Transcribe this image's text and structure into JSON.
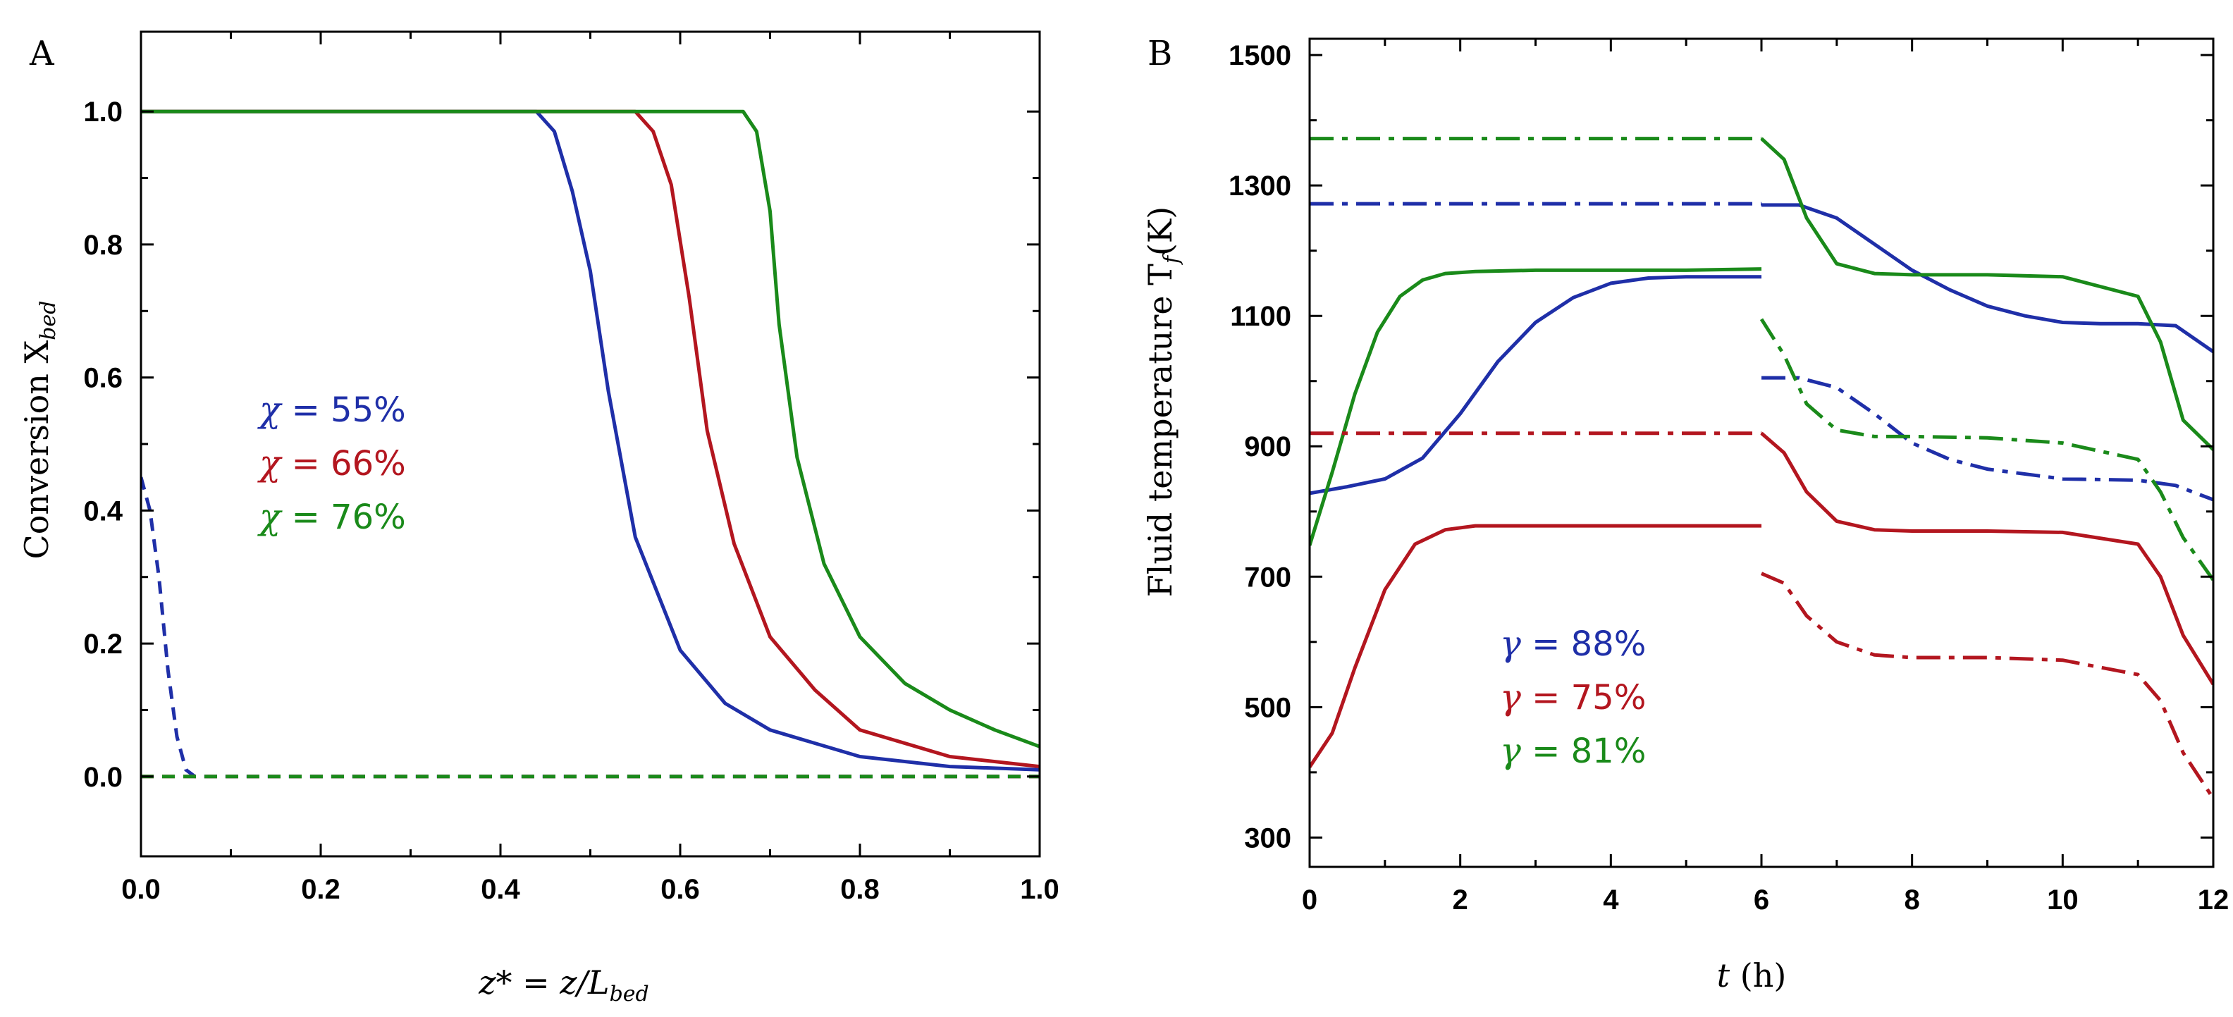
{
  "colors": {
    "blue": "#1f2fa8",
    "red": "#b3161f",
    "green": "#1a8a1a"
  },
  "chart_data": [
    {
      "panel": "A",
      "type": "line",
      "xlabel_main": "z* = z/L",
      "xlabel_sub": "bed",
      "ylabel_main": "Conversion X",
      "ylabel_sub": "bed",
      "xlim": [
        0.0,
        1.0
      ],
      "ylim": [
        -0.12,
        1.12
      ],
      "xticks": [
        "0.0",
        "0.2",
        "0.4",
        "0.6",
        "0.8",
        "1.0"
      ],
      "xtick_values": [
        0.0,
        0.2,
        0.4,
        0.6,
        0.8,
        1.0
      ],
      "yticks": [
        "0.0",
        "0.2",
        "0.4",
        "0.6",
        "0.8",
        "1.0"
      ],
      "ytick_values": [
        0.0,
        0.2,
        0.4,
        0.6,
        0.8,
        1.0
      ],
      "legend": [
        {
          "sym": "χ",
          "text": " = 55%",
          "color": "blue"
        },
        {
          "sym": "χ",
          "text": " = 66%",
          "color": "red"
        },
        {
          "sym": "χ",
          "text": " = 76%",
          "color": "green"
        }
      ],
      "series": [
        {
          "name": "χ = 55% (solid)",
          "color": "blue",
          "dash": "solid",
          "x": [
            0.0,
            0.44,
            0.46,
            0.48,
            0.5,
            0.52,
            0.55,
            0.6,
            0.65,
            0.7,
            0.8,
            0.9,
            1.0
          ],
          "y": [
            1.0,
            1.0,
            0.97,
            0.88,
            0.76,
            0.58,
            0.36,
            0.19,
            0.11,
            0.07,
            0.03,
            0.015,
            0.01
          ]
        },
        {
          "name": "χ = 66% (solid)",
          "color": "red",
          "dash": "solid",
          "x": [
            0.0,
            0.55,
            0.57,
            0.59,
            0.61,
            0.63,
            0.66,
            0.7,
            0.75,
            0.8,
            0.9,
            1.0
          ],
          "y": [
            1.0,
            1.0,
            0.97,
            0.89,
            0.72,
            0.52,
            0.35,
            0.21,
            0.13,
            0.07,
            0.03,
            0.015
          ]
        },
        {
          "name": "χ = 76% (solid)",
          "color": "green",
          "dash": "solid",
          "x": [
            0.0,
            0.67,
            0.685,
            0.7,
            0.71,
            0.73,
            0.76,
            0.8,
            0.85,
            0.9,
            0.95,
            1.0
          ],
          "y": [
            1.0,
            1.0,
            0.97,
            0.85,
            0.68,
            0.48,
            0.32,
            0.21,
            0.14,
            0.1,
            0.07,
            0.045
          ]
        },
        {
          "name": "χ = 55% (dashed)",
          "color": "blue",
          "dash": "dash",
          "x": [
            0.0,
            0.01,
            0.02,
            0.03,
            0.04,
            0.05,
            0.06,
            1.0
          ],
          "y": [
            0.45,
            0.4,
            0.3,
            0.16,
            0.06,
            0.01,
            0.0,
            0.0
          ]
        },
        {
          "name": "χ = 66% (dashed)",
          "color": "red",
          "dash": "dash",
          "x": [
            0.0,
            1.0
          ],
          "y": [
            0.0,
            0.0
          ]
        },
        {
          "name": "χ = 76% (dashed)",
          "color": "green",
          "dash": "dash",
          "x": [
            0.0,
            1.0
          ],
          "y": [
            0.0,
            0.0
          ]
        }
      ]
    },
    {
      "panel": "B",
      "type": "line",
      "xlabel_main": "t",
      "xlabel_unit": " (h)",
      "ylabel_main": "Fluid temperature T",
      "ylabel_sub": "f",
      "ylabel_unit": "(K)",
      "xlim": [
        0,
        12
      ],
      "ylim": [
        255,
        1525
      ],
      "xticks": [
        "0",
        "2",
        "4",
        "6",
        "8",
        "10",
        "12"
      ],
      "xtick_values": [
        0,
        2,
        4,
        6,
        8,
        10,
        12
      ],
      "yticks": [
        "300",
        "500",
        "700",
        "900",
        "1100",
        "1300",
        "1500"
      ],
      "ytick_values": [
        300,
        500,
        700,
        900,
        1100,
        1300,
        1500
      ],
      "legend": [
        {
          "sym": "γ",
          "text": " = 88%",
          "color": "blue"
        },
        {
          "sym": "γ",
          "text": " = 75%",
          "color": "red"
        },
        {
          "sym": "γ",
          "text": " = 81%",
          "color": "green"
        }
      ],
      "series": [
        {
          "name": "γ = 88% solid (charge)",
          "color": "blue",
          "dash": "solid",
          "x": [
            0,
            0.5,
            1.0,
            1.5,
            2.0,
            2.5,
            3.0,
            3.5,
            4.0,
            4.5,
            5.0,
            5.5,
            6.0
          ],
          "y": [
            828,
            838,
            850,
            882,
            950,
            1030,
            1090,
            1128,
            1150,
            1158,
            1160,
            1160,
            1160
          ]
        },
        {
          "name": "γ = 88% solid (discharge)",
          "color": "blue",
          "dash": "solid",
          "x": [
            6.0,
            6.5,
            7.0,
            7.5,
            8.0,
            8.5,
            9.0,
            9.5,
            10.0,
            10.5,
            11.0,
            11.5,
            12.0
          ],
          "y": [
            1270,
            1270,
            1250,
            1210,
            1170,
            1140,
            1115,
            1100,
            1090,
            1088,
            1088,
            1085,
            1045
          ]
        },
        {
          "name": "γ = 75% solid (charge)",
          "color": "red",
          "dash": "solid",
          "x": [
            0,
            0.3,
            0.6,
            1.0,
            1.4,
            1.8,
            2.2,
            3.0,
            4.0,
            5.0,
            6.0
          ],
          "y": [
            408,
            460,
            560,
            680,
            750,
            772,
            778,
            778,
            778,
            778,
            778
          ]
        },
        {
          "name": "γ = 75% solid (discharge)",
          "color": "red",
          "dash": "solid",
          "x": [
            6.0,
            6.3,
            6.6,
            7.0,
            7.5,
            8.0,
            9.0,
            10.0,
            11.0,
            11.3,
            11.6,
            12.0
          ],
          "y": [
            920,
            890,
            830,
            785,
            772,
            770,
            770,
            768,
            750,
            700,
            610,
            535
          ]
        },
        {
          "name": "γ = 81% solid (charge)",
          "color": "green",
          "dash": "solid",
          "x": [
            0,
            0.3,
            0.6,
            0.9,
            1.2,
            1.5,
            1.8,
            2.2,
            3.0,
            4.0,
            5.0,
            6.0
          ],
          "y": [
            748,
            860,
            980,
            1075,
            1130,
            1155,
            1165,
            1168,
            1170,
            1170,
            1170,
            1172
          ]
        },
        {
          "name": "γ = 81% solid (discharge)",
          "color": "green",
          "dash": "solid",
          "x": [
            6.0,
            6.3,
            6.6,
            7.0,
            7.5,
            8.0,
            9.0,
            10.0,
            11.0,
            11.3,
            11.6,
            12.0
          ],
          "y": [
            1372,
            1340,
            1250,
            1180,
            1165,
            1163,
            1163,
            1160,
            1130,
            1060,
            940,
            895
          ]
        },
        {
          "name": "γ = 88% dash-dot (charge)",
          "color": "blue",
          "dash": "dashdot",
          "x": [
            0,
            6.0
          ],
          "y": [
            1272,
            1272
          ]
        },
        {
          "name": "γ = 88% dash-dot (discharge)",
          "color": "blue",
          "dash": "dashdot",
          "x": [
            6.0,
            6.5,
            7.0,
            7.5,
            8.0,
            8.5,
            9.0,
            10.0,
            11.0,
            11.5,
            12.0
          ],
          "y": [
            1005,
            1005,
            990,
            950,
            905,
            880,
            865,
            850,
            848,
            840,
            818
          ]
        },
        {
          "name": "γ = 75% dash-dot (charge)",
          "color": "red",
          "dash": "dashdot",
          "x": [
            0,
            6.0
          ],
          "y": [
            920,
            920
          ]
        },
        {
          "name": "γ = 75% dash-dot (discharge)",
          "color": "red",
          "dash": "dashdot",
          "x": [
            6.0,
            6.3,
            6.6,
            7.0,
            7.5,
            8.0,
            9.0,
            10.0,
            11.0,
            11.3,
            11.6,
            12.0
          ],
          "y": [
            705,
            690,
            640,
            600,
            580,
            576,
            576,
            572,
            550,
            510,
            430,
            360
          ]
        },
        {
          "name": "γ = 81% dash-dot (charge)",
          "color": "green",
          "dash": "dashdot",
          "x": [
            0,
            6.0
          ],
          "y": [
            1372,
            1372
          ]
        },
        {
          "name": "γ = 81% dash-dot (discharge)",
          "color": "green",
          "dash": "dashdot",
          "x": [
            6.0,
            6.3,
            6.6,
            7.0,
            7.5,
            8.0,
            9.0,
            10.0,
            11.0,
            11.3,
            11.6,
            12.0
          ],
          "y": [
            1095,
            1040,
            965,
            925,
            915,
            915,
            913,
            905,
            880,
            830,
            760,
            695
          ]
        }
      ]
    }
  ]
}
